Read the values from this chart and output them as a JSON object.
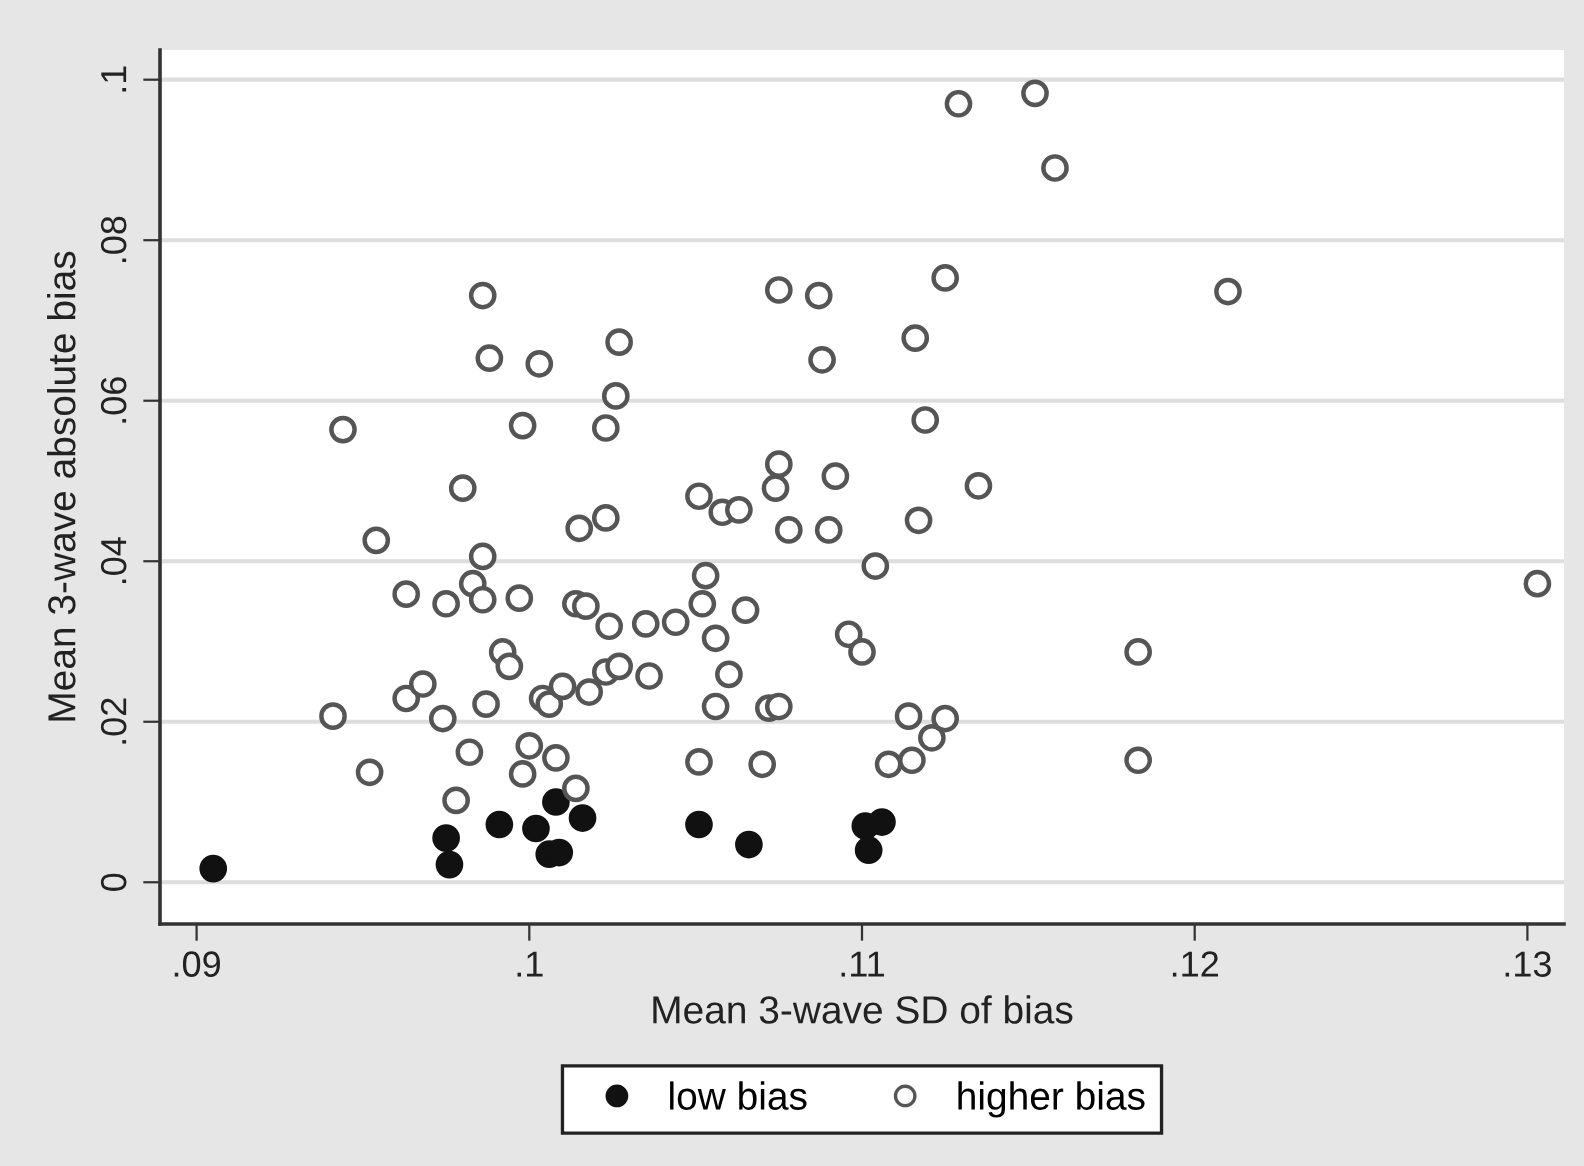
{
  "chart_data": {
    "type": "scatter",
    "xlabel": "Mean 3-wave SD of bias",
    "ylabel": "Mean 3-wave absolute bias",
    "xlim": [
      0.0889,
      0.1311
    ],
    "ylim": [
      -0.0052,
      0.1037
    ],
    "xticks": [
      {
        "value": 0.09,
        "label": ".09"
      },
      {
        "value": 0.1,
        "label": ".1"
      },
      {
        "value": 0.11,
        "label": ".11"
      },
      {
        "value": 0.12,
        "label": ".12"
      },
      {
        "value": 0.13,
        "label": ".13"
      }
    ],
    "yticks": [
      0,
      {
        "value": 0.02,
        "label": ".02"
      },
      {
        "value": 0.04,
        "label": ".04"
      },
      {
        "value": 0.06,
        "label": ".06"
      },
      {
        "value": 0.08,
        "label": ".08"
      },
      {
        "value": 0.1,
        "label": ".1"
      }
    ],
    "grid": "y",
    "legend": "bottom",
    "series": [
      {
        "name": "low bias",
        "color": "#111111",
        "marker": "circle",
        "x": [
          0.0905,
          0.0975,
          0.0976,
          0.0991,
          0.1002,
          0.1008,
          0.1006,
          0.1009,
          0.1016,
          0.1051,
          0.1066,
          0.1101,
          0.1106,
          0.1102
        ],
        "values": [
          0.0017,
          0.0055,
          0.0022,
          0.0072,
          0.0067,
          0.01,
          0.0035,
          0.0037,
          0.008,
          0.0072,
          0.0047,
          0.007,
          0.0075,
          0.004
        ]
      },
      {
        "name": "higher bias",
        "color": "#555555",
        "marker": "open circle",
        "x": [
          0.0944,
          0.0954,
          0.0941,
          0.0952,
          0.0963,
          0.0963,
          0.0968,
          0.0974,
          0.0975,
          0.0978,
          0.098,
          0.0982,
          0.0983,
          0.0986,
          0.0986,
          0.0986,
          0.0987,
          0.0988,
          0.0992,
          0.0994,
          0.0997,
          0.0998,
          0.0998,
          0.1,
          0.1003,
          0.1004,
          0.1006,
          0.1008,
          0.101,
          0.1014,
          0.1014,
          0.1015,
          0.1017,
          0.1018,
          0.1023,
          0.1023,
          0.1023,
          0.1024,
          0.1026,
          0.1027,
          0.1027,
          0.1035,
          0.1036,
          0.1044,
          0.1051,
          0.1051,
          0.1052,
          0.1053,
          0.1056,
          0.1058,
          0.1063,
          0.1056,
          0.106,
          0.1065,
          0.1072,
          0.1075,
          0.1075,
          0.1074,
          0.1075,
          0.1087,
          0.1088,
          0.1092,
          0.109,
          0.1078,
          0.107,
          0.1096,
          0.11,
          0.1104,
          0.1108,
          0.1115,
          0.1114,
          0.1121,
          0.1125,
          0.1117,
          0.1119,
          0.1116,
          0.1125,
          0.1135,
          0.1129,
          0.1152,
          0.1158,
          0.1183,
          0.1183,
          0.121,
          0.1303
        ],
        "values": [
          0.0564,
          0.0426,
          0.0207,
          0.0137,
          0.0359,
          0.0229,
          0.0247,
          0.0204,
          0.0347,
          0.0102,
          0.0491,
          0.0162,
          0.0372,
          0.0731,
          0.0406,
          0.0352,
          0.0222,
          0.0653,
          0.0287,
          0.0269,
          0.0354,
          0.0135,
          0.0569,
          0.017,
          0.0646,
          0.0229,
          0.0222,
          0.0155,
          0.0244,
          0.0117,
          0.0347,
          0.0441,
          0.0344,
          0.0237,
          0.0454,
          0.0566,
          0.0262,
          0.0319,
          0.0606,
          0.0673,
          0.0269,
          0.0322,
          0.0257,
          0.0324,
          0.015,
          0.0481,
          0.0347,
          0.0382,
          0.0304,
          0.0461,
          0.0464,
          0.0219,
          0.0259,
          0.0339,
          0.0217,
          0.0219,
          0.0521,
          0.0491,
          0.0738,
          0.0731,
          0.0651,
          0.0506,
          0.0439,
          0.0439,
          0.0147,
          0.0309,
          0.0287,
          0.0394,
          0.0147,
          0.0152,
          0.0207,
          0.018,
          0.0204,
          0.0451,
          0.0576,
          0.0678,
          0.0753,
          0.0494,
          0.097,
          0.0983,
          0.089,
          0.0287,
          0.0152,
          0.0736,
          0.0372
        ]
      }
    ]
  }
}
